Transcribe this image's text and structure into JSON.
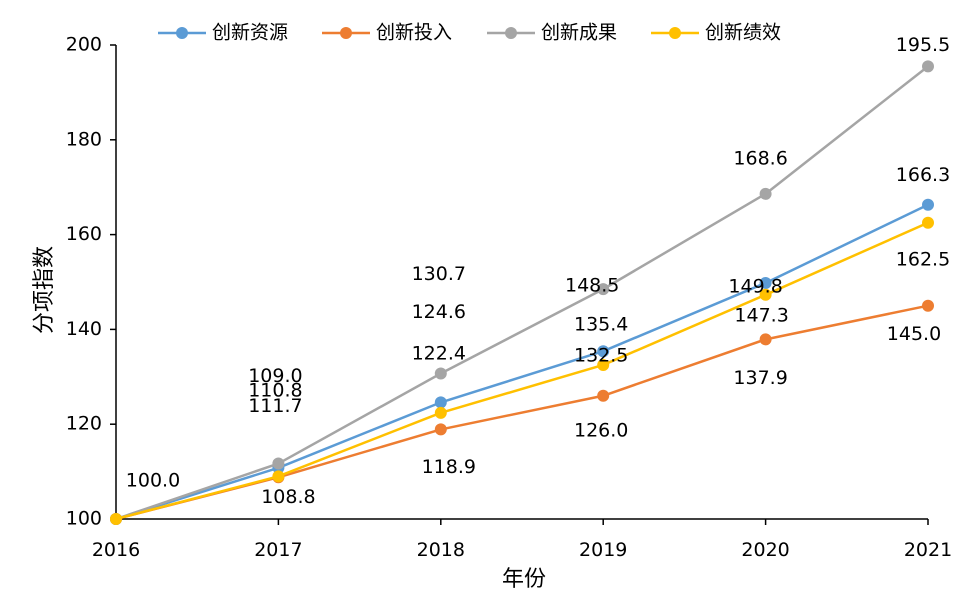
{
  "chart_data": {
    "type": "line",
    "title": "",
    "xlabel": "年份",
    "ylabel": "分项指数",
    "x": [
      "2016",
      "2017",
      "2018",
      "2019",
      "2020",
      "2021"
    ],
    "ylim": [
      100,
      200
    ],
    "yticks": [
      "100",
      "120",
      "140",
      "160",
      "180",
      "200"
    ],
    "grid": false,
    "legend_position": "top",
    "series": [
      {
        "name": "创新资源",
        "color": "#5B9BD5",
        "values": [
          100.0,
          110.8,
          124.6,
          135.4,
          149.8,
          166.3
        ]
      },
      {
        "name": "创新投入",
        "color": "#ED7D31",
        "values": [
          100.0,
          108.8,
          118.9,
          126.0,
          137.9,
          145.0
        ]
      },
      {
        "name": "创新成果",
        "color": "#A5A5A5",
        "values": [
          100.0,
          111.7,
          130.7,
          148.5,
          168.6,
          195.5
        ]
      },
      {
        "name": "创新绩效",
        "color": "#FFC000",
        "values": [
          100.0,
          109.0,
          122.4,
          132.5,
          147.3,
          162.5
        ]
      }
    ],
    "data_labels": [
      {
        "text": "100.0",
        "x": "2016",
        "y": 100.0
      },
      {
        "text": "109.0",
        "x": "2017",
        "y": 109.0
      },
      {
        "text": "111.7",
        "x": "2017",
        "y": 111.7
      },
      {
        "text": "110.8",
        "x": "2017",
        "y": 110.8
      },
      {
        "text": "108.8",
        "x": "2017",
        "y": 108.8
      },
      {
        "text": "130.7",
        "x": "2018",
        "y": 130.7
      },
      {
        "text": "124.6",
        "x": "2018",
        "y": 124.6
      },
      {
        "text": "122.4",
        "x": "2018",
        "y": 122.4
      },
      {
        "text": "118.9",
        "x": "2018",
        "y": 118.9
      },
      {
        "text": "148.5",
        "x": "2019",
        "y": 148.5
      },
      {
        "text": "135.4",
        "x": "2019",
        "y": 135.4
      },
      {
        "text": "132.5",
        "x": "2019",
        "y": 132.5
      },
      {
        "text": "126.0",
        "x": "2019",
        "y": 126.0
      },
      {
        "text": "168.6",
        "x": "2020",
        "y": 168.6
      },
      {
        "text": "149.8",
        "x": "2020",
        "y": 149.8
      },
      {
        "text": "147.3",
        "x": "2020",
        "y": 147.3
      },
      {
        "text": "137.9",
        "x": "2020",
        "y": 137.9
      },
      {
        "text": "195.5",
        "x": "2021",
        "y": 195.5
      },
      {
        "text": "166.3",
        "x": "2021",
        "y": 166.3
      },
      {
        "text": "162.5",
        "x": "2021",
        "y": 162.5
      },
      {
        "text": "145.0",
        "x": "2021",
        "y": 145.0
      }
    ]
  }
}
